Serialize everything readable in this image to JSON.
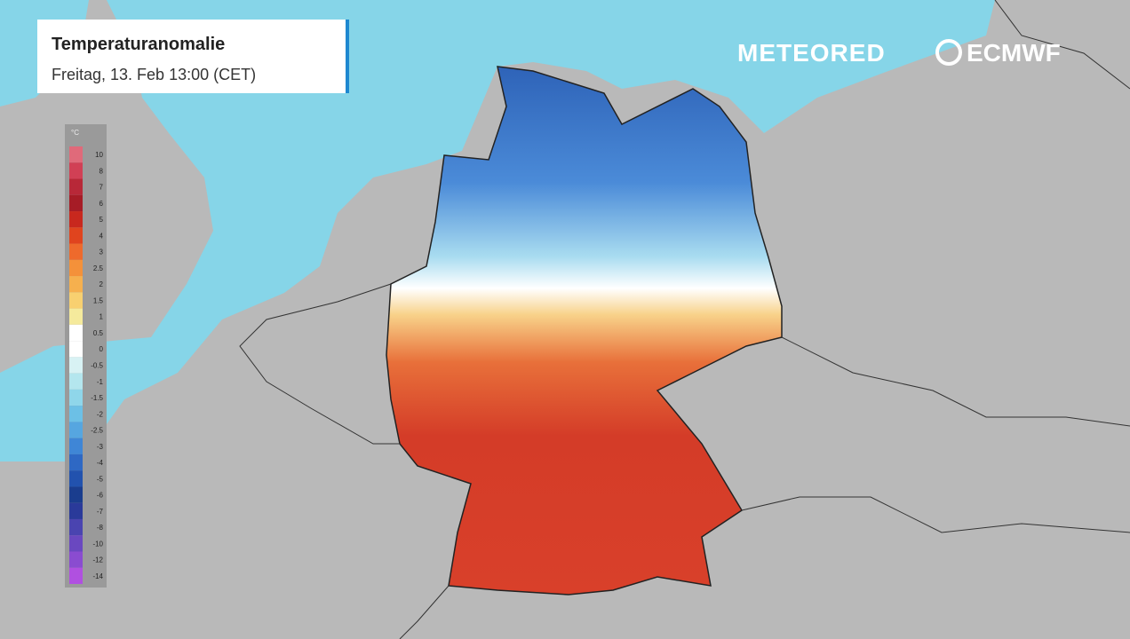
{
  "header": {
    "title": "Temperaturanomalie",
    "subtitle": "Freitag, 13. Feb 13:00 (CET)"
  },
  "logos": [
    "METEORED",
    "ECMWF"
  ],
  "legend": {
    "unit": "°C",
    "values": [
      10,
      8,
      7,
      6,
      5,
      4,
      3,
      2.5,
      2,
      1.5,
      1,
      0.5,
      0,
      -0.5,
      -1,
      -1.5,
      -2,
      -2.5,
      -3,
      -4,
      -5,
      -6,
      -7,
      -8,
      -10,
      -12,
      -14
    ],
    "colors": [
      "#e06a7a",
      "#d14055",
      "#b82838",
      "#a61c26",
      "#c8281e",
      "#e0441e",
      "#ee6a2c",
      "#f4913a",
      "#f6b04e",
      "#f8d070",
      "#f5ea9c",
      "#ffffff",
      "#ffffff",
      "#d8f2f4",
      "#b4e6ee",
      "#8fd6ea",
      "#6cc0e6",
      "#56a6e0",
      "#3f86d6",
      "#2e68c4",
      "#2252ae",
      "#1a3d8e",
      "#2a3a9a",
      "#4a44b0",
      "#6a48c0",
      "#8a4cd0",
      "#b050e0"
    ]
  }
}
